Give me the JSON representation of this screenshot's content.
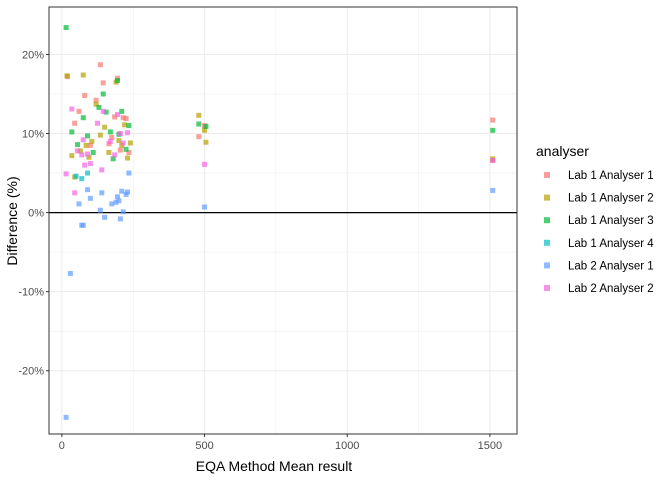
{
  "chart_data": {
    "type": "scatter",
    "title": "",
    "xlabel": "EQA Method Mean result",
    "ylabel": "Difference (%)",
    "xlim": [
      -45,
      1595
    ],
    "ylim": [
      -28,
      26
    ],
    "x_ticks": [
      0,
      500,
      1000,
      1500
    ],
    "x_tick_labels": [
      "0",
      "500",
      "1000",
      "1500"
    ],
    "y_ticks": [
      20,
      10,
      0,
      -10,
      -20
    ],
    "y_tick_labels": [
      "20%",
      "10%",
      "0%",
      "-10%",
      "-20%"
    ],
    "reference_line": 0,
    "grid": true,
    "legend_title": "analyser",
    "legend_position": "right",
    "series": [
      {
        "name": "Lab 1 Analyser 1",
        "color": "#F8766D",
        "points": [
          [
            20,
            17.2
          ],
          [
            45,
            11.3
          ],
          [
            60,
            12.8
          ],
          [
            80,
            14.8
          ],
          [
            100,
            8.5
          ],
          [
            120,
            14.2
          ],
          [
            135,
            18.7
          ],
          [
            145,
            16.4
          ],
          [
            165,
            8.7
          ],
          [
            175,
            9.5
          ],
          [
            185,
            12.1
          ],
          [
            195,
            17.0
          ],
          [
            205,
            7.9
          ],
          [
            215,
            12.0
          ],
          [
            225,
            11.9
          ],
          [
            235,
            7.6
          ],
          [
            480,
            9.6
          ],
          [
            500,
            11.0
          ],
          [
            1510,
            11.7
          ],
          [
            1510,
            6.6
          ]
        ]
      },
      {
        "name": "Lab 1 Analyser 2",
        "color": "#B79F00",
        "points": [
          [
            18,
            17.3
          ],
          [
            35,
            7.2
          ],
          [
            45,
            4.5
          ],
          [
            65,
            7.8
          ],
          [
            75,
            17.4
          ],
          [
            85,
            8.5
          ],
          [
            95,
            7.0
          ],
          [
            105,
            9.0
          ],
          [
            120,
            13.7
          ],
          [
            135,
            9.8
          ],
          [
            150,
            10.8
          ],
          [
            165,
            7.6
          ],
          [
            190,
            16.5
          ],
          [
            200,
            9.1
          ],
          [
            210,
            8.5
          ],
          [
            220,
            11.1
          ],
          [
            230,
            6.9
          ],
          [
            240,
            8.8
          ],
          [
            480,
            12.3
          ],
          [
            500,
            10.4
          ],
          [
            505,
            8.9
          ],
          [
            1510,
            6.8
          ]
        ]
      },
      {
        "name": "Lab 1 Analyser 3",
        "color": "#00BA38",
        "points": [
          [
            15,
            23.4
          ],
          [
            35,
            10.2
          ],
          [
            55,
            8.6
          ],
          [
            75,
            12.0
          ],
          [
            90,
            9.7
          ],
          [
            110,
            7.6
          ],
          [
            130,
            13.3
          ],
          [
            145,
            15.0
          ],
          [
            155,
            12.7
          ],
          [
            170,
            10.2
          ],
          [
            180,
            6.8
          ],
          [
            195,
            16.7
          ],
          [
            200,
            9.9
          ],
          [
            210,
            12.8
          ],
          [
            225,
            8.0
          ],
          [
            235,
            11.0
          ],
          [
            480,
            11.2
          ],
          [
            505,
            10.9
          ],
          [
            1510,
            10.4
          ]
        ]
      },
      {
        "name": "Lab 1 Analyser 4",
        "color": "#00BFC4",
        "points": [
          [
            50,
            4.6
          ],
          [
            70,
            4.3
          ],
          [
            90,
            5.0
          ]
        ]
      },
      {
        "name": "Lab 2 Analyser 1",
        "color": "#619CFF",
        "points": [
          [
            15,
            -25.9
          ],
          [
            30,
            -7.7
          ],
          [
            60,
            1.1
          ],
          [
            70,
            -1.6
          ],
          [
            75,
            -1.6
          ],
          [
            90,
            2.9
          ],
          [
            100,
            1.8
          ],
          [
            135,
            0.3
          ],
          [
            140,
            2.5
          ],
          [
            150,
            -0.6
          ],
          [
            175,
            1.1
          ],
          [
            190,
            1.3
          ],
          [
            195,
            2.0
          ],
          [
            200,
            1.5
          ],
          [
            205,
            -0.8
          ],
          [
            210,
            2.7
          ],
          [
            215,
            0.1
          ],
          [
            225,
            2.3
          ],
          [
            230,
            2.6
          ],
          [
            235,
            5.0
          ],
          [
            500,
            0.7
          ],
          [
            1510,
            2.8
          ]
        ]
      },
      {
        "name": "Lab 2 Analyser 2",
        "color": "#F564E3",
        "points": [
          [
            15,
            4.9
          ],
          [
            35,
            13.1
          ],
          [
            45,
            2.5
          ],
          [
            55,
            7.8
          ],
          [
            70,
            7.3
          ],
          [
            75,
            9.2
          ],
          [
            80,
            6.0
          ],
          [
            90,
            7.4
          ],
          [
            100,
            6.2
          ],
          [
            125,
            11.3
          ],
          [
            140,
            5.4
          ],
          [
            145,
            12.8
          ],
          [
            170,
            9.0
          ],
          [
            185,
            7.3
          ],
          [
            195,
            12.4
          ],
          [
            205,
            10.0
          ],
          [
            215,
            8.8
          ],
          [
            230,
            10.1
          ],
          [
            500,
            6.1
          ],
          [
            1510,
            6.6
          ]
        ]
      }
    ]
  }
}
